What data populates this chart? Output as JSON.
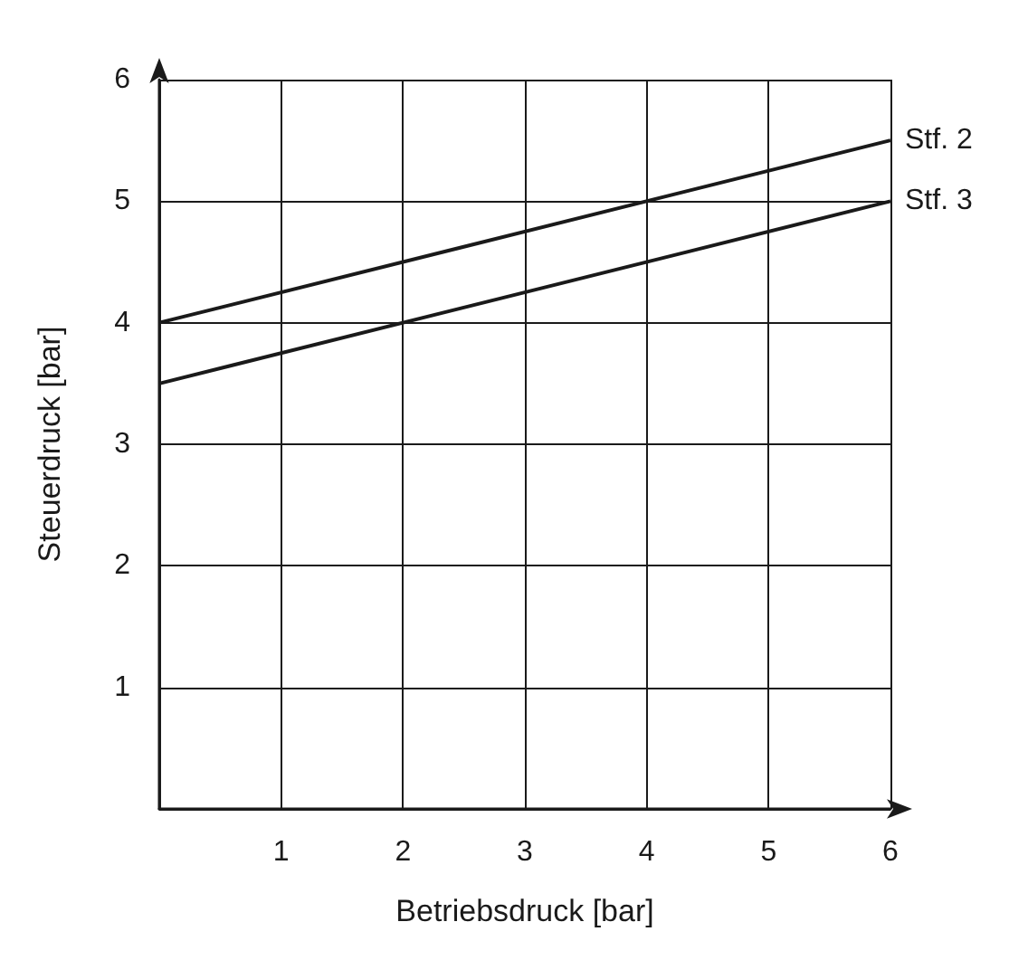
{
  "chart_data": {
    "type": "line",
    "xlabel": "Betriebsdruck [bar]",
    "ylabel": "Steuerdruck [bar]",
    "x": [
      0,
      6
    ],
    "series": [
      {
        "name": "Stf. 2",
        "color": "#1a1a1a",
        "values": [
          4,
          5.5
        ]
      },
      {
        "name": "Stf. 3",
        "color": "#1a1a1a",
        "values": [
          3.5,
          5
        ]
      }
    ],
    "xlim": [
      0,
      6
    ],
    "ylim": [
      0,
      6
    ],
    "xticks": [
      {
        "value": 0,
        "label": null
      },
      1,
      2,
      3,
      4,
      5,
      6
    ],
    "yticks": [
      {
        "value": 0,
        "label": null
      },
      1,
      2,
      3,
      4,
      5,
      6
    ],
    "grid": true,
    "legend": false,
    "marker": "none",
    "line_style": "solid"
  }
}
